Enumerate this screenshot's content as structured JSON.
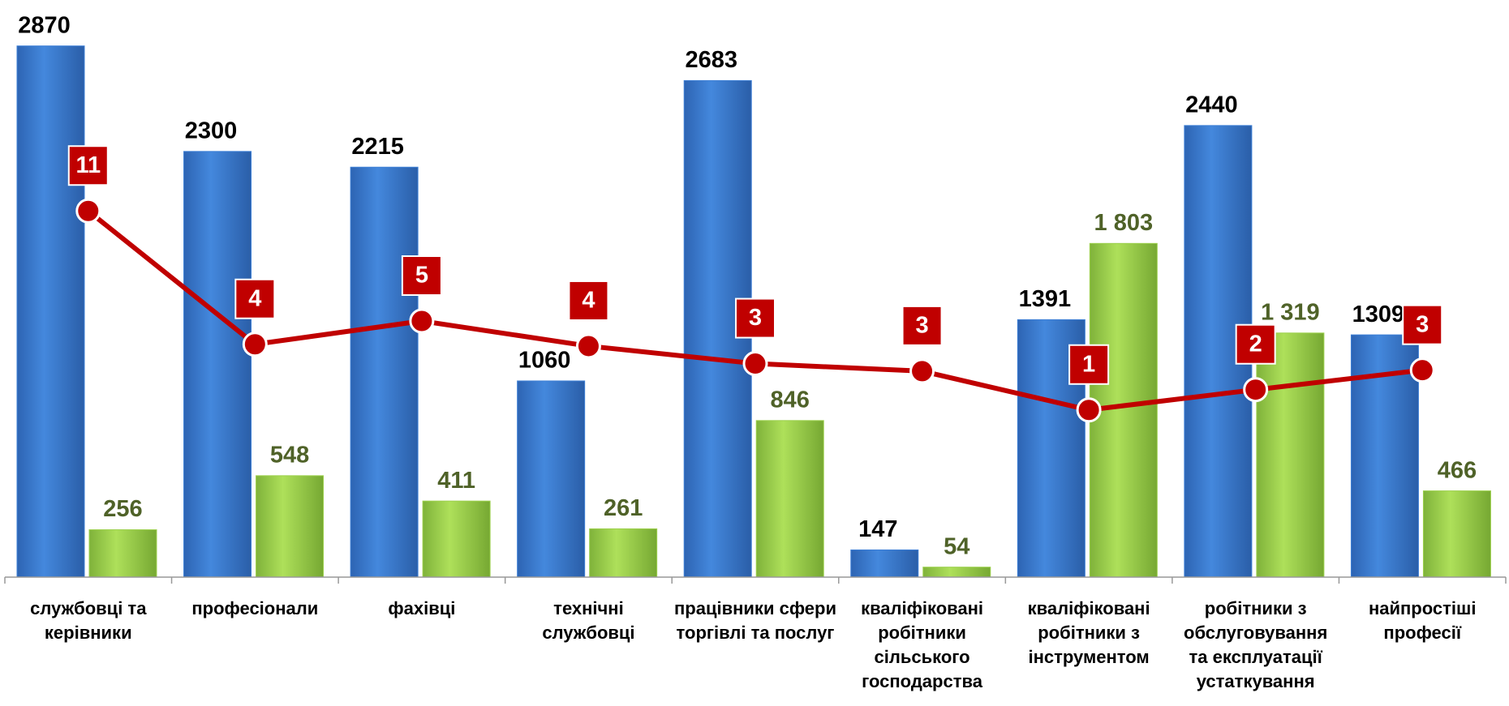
{
  "chart_data": {
    "type": "bar",
    "categories": [
      "службовці та керівники",
      "професіонали",
      "фахівці",
      "технічні службовці",
      "працівники сфери торгівлі та послуг",
      "кваліфіковані робітники сільського господарства",
      "кваліфіковані робітники з інструментом",
      "робітники з обслуговування та експлуатації устаткування",
      "найпростіші професії"
    ],
    "series": [
      {
        "type": "bar",
        "color": "#3d7fd6",
        "values": [
          2870,
          2300,
          2215,
          1060,
          2683,
          147,
          1391,
          2440,
          1309
        ]
      },
      {
        "type": "bar",
        "color": "#9cd04c",
        "values": [
          256,
          548,
          411,
          261,
          846,
          54,
          1803,
          1319,
          466
        ],
        "value_labels": [
          "256",
          "548",
          "411",
          "261",
          "846",
          "54",
          "1 803",
          "1 319",
          "466"
        ]
      },
      {
        "type": "line",
        "axis": "y2",
        "color": "#c00000",
        "values": [
          11,
          4.3,
          5.47,
          4.21,
          3.33,
          2.95,
          1.0,
          2.02,
          3.0
        ],
        "value_labels": [
          "11",
          "4",
          "5",
          "4",
          "3",
          "3",
          "1",
          "2",
          "3"
        ]
      }
    ],
    "ylim": [
      0,
      3000
    ],
    "y2lim": [
      -7.4,
      20.5
    ]
  }
}
